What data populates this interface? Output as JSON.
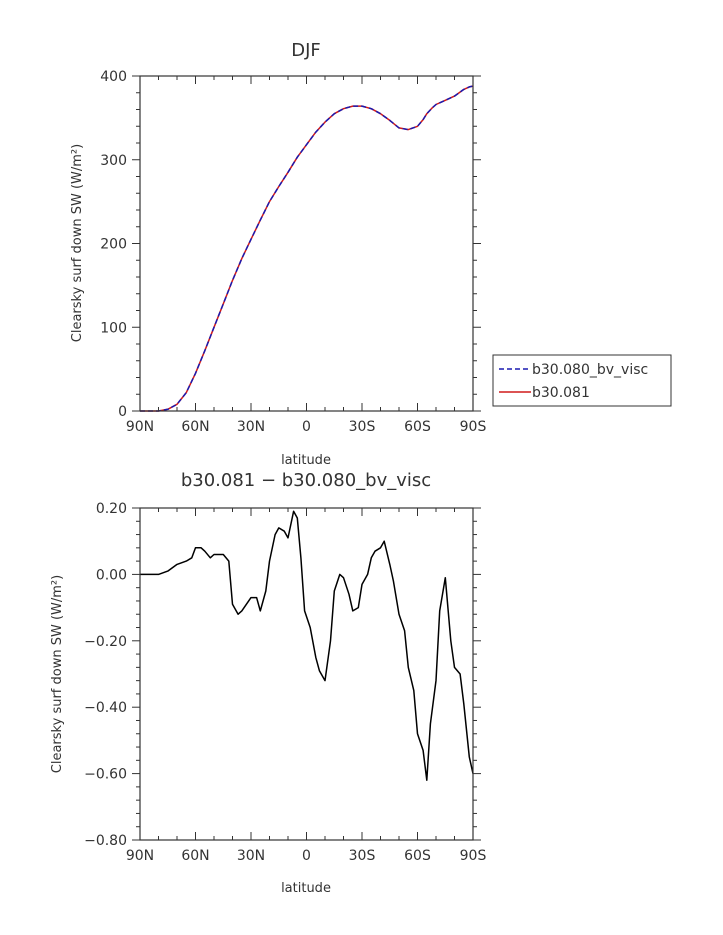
{
  "chart_data": [
    {
      "type": "line",
      "title": "DJF",
      "xlabel": "latitude",
      "ylabel": "Clearsky surf down SW (W/m²)",
      "xlim": [
        90,
        -90
      ],
      "ylim": [
        0,
        400
      ],
      "xticks": [
        90,
        60,
        30,
        0,
        -30,
        -60,
        -90
      ],
      "xtick_labels": [
        "90N",
        "60N",
        "30N",
        "0",
        "30S",
        "60S",
        "90S"
      ],
      "yticks": [
        0,
        100,
        200,
        300,
        400
      ],
      "ytick_labels": [
        "0",
        "100",
        "200",
        "300",
        "400"
      ],
      "legend_position": "right",
      "x": [
        90,
        85,
        80,
        75,
        70,
        65,
        60,
        55,
        50,
        45,
        40,
        35,
        30,
        25,
        20,
        15,
        10,
        5,
        0,
        -5,
        -10,
        -15,
        -20,
        -25,
        -30,
        -35,
        -40,
        -45,
        -50,
        -55,
        -60,
        -63,
        -65,
        -68,
        -70,
        -75,
        -80,
        -85,
        -88,
        -90
      ],
      "series": [
        {
          "name": "b30.080_bv_visc",
          "color": "#1a1ab0",
          "dash": "dashed",
          "values": [
            0,
            0,
            0,
            2,
            8,
            22,
            45,
            72,
            100,
            128,
            156,
            182,
            205,
            228,
            250,
            268,
            285,
            303,
            318,
            333,
            345,
            355,
            361,
            364,
            364,
            361,
            355,
            347,
            338,
            336,
            340,
            348,
            355,
            362,
            366,
            371,
            376,
            384,
            387,
            388
          ]
        },
        {
          "name": "b30.081",
          "color": "#d11a1a",
          "dash": "solid",
          "values": [
            0,
            0,
            0,
            2,
            8,
            22,
            45,
            72,
            100,
            128,
            156,
            182,
            205,
            228,
            250,
            268,
            285,
            303,
            318,
            333,
            345,
            355,
            361,
            364,
            364,
            361,
            355,
            347,
            338,
            336,
            340,
            348,
            355,
            362,
            366,
            371,
            376,
            384,
            387,
            388
          ]
        }
      ]
    },
    {
      "type": "line",
      "title": "b30.081 − b30.080_bv_visc",
      "xlabel": "latitude",
      "ylabel": "Clearsky surf down SW (W/m²)",
      "xlim": [
        90,
        -90
      ],
      "ylim": [
        -0.8,
        0.2
      ],
      "xticks": [
        90,
        60,
        30,
        0,
        -30,
        -60,
        -90
      ],
      "xtick_labels": [
        "90N",
        "60N",
        "30N",
        "0",
        "30S",
        "60S",
        "90S"
      ],
      "yticks": [
        0.2,
        0,
        -0.2,
        -0.4,
        -0.6,
        -0.8
      ],
      "ytick_labels": [
        "0.20",
        "0.00",
        "−0.20",
        "−0.40",
        "−0.60",
        "−0.80"
      ],
      "x": [
        90,
        80,
        75,
        70,
        65,
        62,
        60,
        57,
        55,
        52,
        50,
        45,
        42,
        40,
        37,
        35,
        30,
        27,
        25,
        22,
        20,
        17,
        15,
        12,
        10,
        7,
        5,
        3,
        1,
        -2,
        -5,
        -7,
        -10,
        -13,
        -15,
        -18,
        -20,
        -23,
        -25,
        -28,
        -30,
        -33,
        -35,
        -37,
        -40,
        -42,
        -45,
        -47,
        -50,
        -53,
        -55,
        -58,
        -60,
        -63,
        -65,
        -67,
        -70,
        -72,
        -75,
        -78,
        -80,
        -83,
        -85,
        -88,
        -90
      ],
      "series": [
        {
          "name": "",
          "color": "#000000",
          "values": [
            0.0,
            0.0,
            0.01,
            0.03,
            0.04,
            0.05,
            0.08,
            0.08,
            0.07,
            0.05,
            0.06,
            0.06,
            0.04,
            -0.09,
            -0.12,
            -0.11,
            -0.07,
            -0.07,
            -0.11,
            -0.05,
            0.04,
            0.12,
            0.14,
            0.13,
            0.11,
            0.19,
            0.17,
            0.05,
            -0.11,
            -0.16,
            -0.25,
            -0.29,
            -0.32,
            -0.2,
            -0.05,
            0.0,
            -0.01,
            -0.06,
            -0.11,
            -0.1,
            -0.03,
            0.0,
            0.05,
            0.07,
            0.08,
            0.1,
            0.03,
            -0.02,
            -0.12,
            -0.17,
            -0.28,
            -0.35,
            -0.48,
            -0.53,
            -0.62,
            -0.45,
            -0.32,
            -0.11,
            -0.01,
            -0.2,
            -0.28,
            -0.3,
            -0.39,
            -0.55,
            -0.6
          ]
        }
      ]
    }
  ]
}
